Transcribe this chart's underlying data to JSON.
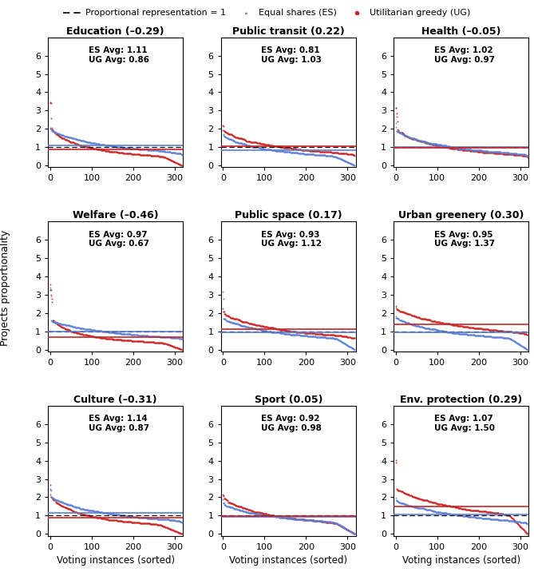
{
  "subplots": [
    {
      "title": "Education (–0.29)",
      "es_avg": 1.11,
      "ug_avg": 0.86,
      "n_points": 318
    },
    {
      "title": "Public transit (0.22)",
      "es_avg": 0.81,
      "ug_avg": 1.03,
      "n_points": 318
    },
    {
      "title": "Health (–0.05)",
      "es_avg": 1.02,
      "ug_avg": 0.97,
      "n_points": 318
    },
    {
      "title": "Welfare (–0.46)",
      "es_avg": 0.97,
      "ug_avg": 0.67,
      "n_points": 318
    },
    {
      "title": "Public space (0.17)",
      "es_avg": 0.93,
      "ug_avg": 1.12,
      "n_points": 318
    },
    {
      "title": "Urban greenery (0.30)",
      "es_avg": 0.95,
      "ug_avg": 1.37,
      "n_points": 318
    },
    {
      "title": "Culture (–0.31)",
      "es_avg": 1.14,
      "ug_avg": 0.87,
      "n_points": 318
    },
    {
      "title": "Sport (0.05)",
      "es_avg": 0.92,
      "ug_avg": 0.98,
      "n_points": 318
    },
    {
      "title": "Env. protection (0.29)",
      "es_avg": 1.07,
      "ug_avg": 1.5,
      "n_points": 318
    }
  ],
  "es_color": "#5B7FD4",
  "ug_color": "#CC2222",
  "ylabel": "Projects proportionality",
  "xlabel": "Voting instances (sorted)",
  "ylim": [
    -0.1,
    7.0
  ],
  "xlim": [
    -5,
    320
  ],
  "yticks": [
    0,
    1,
    2,
    3,
    4,
    5,
    6
  ],
  "xticks": [
    0,
    100,
    200,
    300
  ],
  "figsize": [
    6.69,
    7.21
  ],
  "dpi": 100,
  "legend_label_prop": "Proportional representation = 1",
  "legend_label_es": "Equal shares (ES)",
  "legend_label_ug": "Utilitarian greedy (UG)"
}
